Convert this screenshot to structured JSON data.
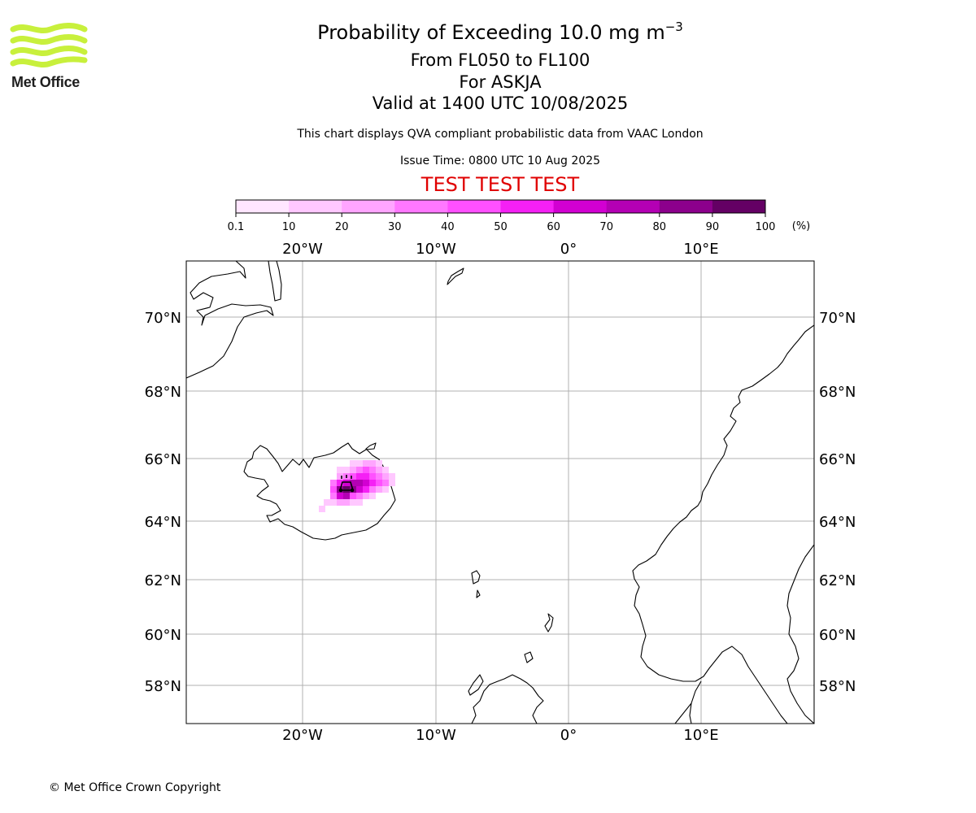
{
  "logo": {
    "text": "Met Office",
    "icon": "met-office-wave-logo",
    "color": "#c8f03c"
  },
  "header": {
    "title_main": "Probability of Exceeding 10.0 mg m",
    "title_sup": "−3",
    "levels": "From FL050 to FL100",
    "volcano": "For ASKJA",
    "valid": "Valid at 1400 UTC 10/08/2025",
    "description": "This chart displays QVA compliant probabilistic data from VAAC London",
    "issue_time": "Issue Time: 0800 UTC 10 Aug 2025",
    "test_banner": "TEST TEST TEST",
    "test_color": "#e00000"
  },
  "colorbar": {
    "ticks": [
      "0.1",
      "10",
      "20",
      "30",
      "40",
      "50",
      "60",
      "70",
      "80",
      "90",
      "100"
    ],
    "unit": "(%)",
    "colors": [
      "#ffe6ff",
      "#ffc8ff",
      "#ffa5ff",
      "#ff78ff",
      "#ff50ff",
      "#f520f5",
      "#d200d2",
      "#b400b4",
      "#8c008c",
      "#640064"
    ]
  },
  "map": {
    "lon_labels": [
      "20°W",
      "10°W",
      "0°",
      "10°E"
    ],
    "lat_labels": [
      "70°N",
      "68°N",
      "66°N",
      "64°N",
      "62°N",
      "60°N",
      "58°N"
    ],
    "grid_color": "#b0b0b0",
    "volcano_icon": "volcano-icon"
  },
  "footer": {
    "copyright": "© Met Office Crown Copyright"
  }
}
